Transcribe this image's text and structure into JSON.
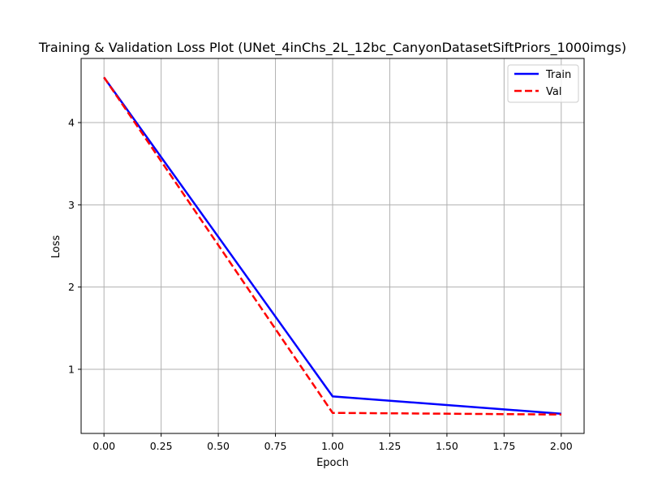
{
  "chart_data": {
    "type": "line",
    "title": "Training & Validation Loss Plot (UNet_4inChs_2L_12bc_CanyonDatasetSiftPriors_1000imgs)",
    "xlabel": "Epoch",
    "ylabel": "Loss",
    "x": [
      0,
      1,
      2
    ],
    "xlim": [
      -0.1,
      2.1
    ],
    "ylim": [
      0.22,
      4.78
    ],
    "xticks": [
      0,
      0.25,
      0.5,
      0.75,
      1.0,
      1.25,
      1.5,
      1.75,
      2.0
    ],
    "xtick_labels": [
      "0.00",
      "0.25",
      "0.50",
      "0.75",
      "1.00",
      "1.25",
      "1.50",
      "1.75",
      "2.00"
    ],
    "yticks": [
      1,
      2,
      3,
      4
    ],
    "ytick_labels": [
      "1",
      "2",
      "3",
      "4"
    ],
    "grid": true,
    "legend_position": "top-right",
    "series": [
      {
        "name": "Train",
        "values": [
          4.55,
          0.67,
          0.46
        ],
        "color": "#0000ff",
        "style": "solid"
      },
      {
        "name": "Val",
        "values": [
          4.55,
          0.47,
          0.45
        ],
        "color": "#ff0000",
        "style": "dashed"
      }
    ]
  }
}
